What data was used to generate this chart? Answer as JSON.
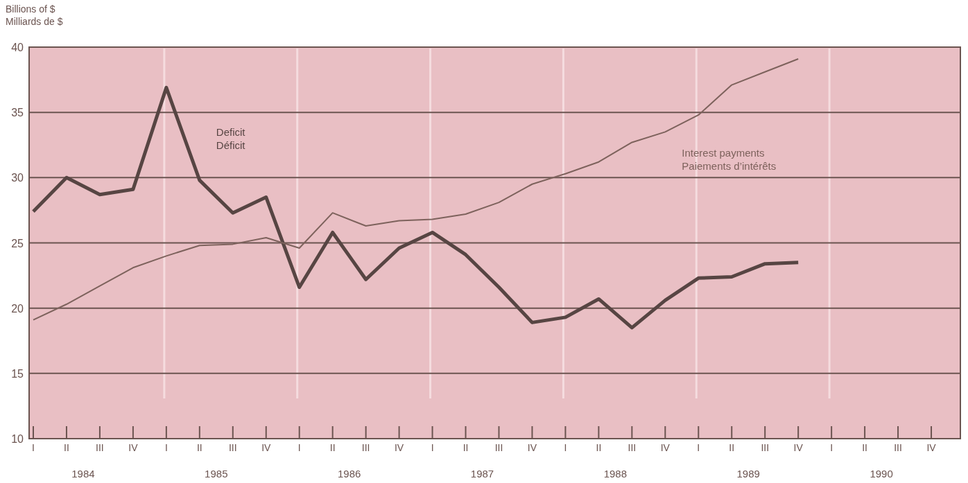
{
  "chart_data": {
    "type": "line",
    "ylabel": "Billions of $\nMilliards de $",
    "categories": [
      "I",
      "II",
      "III",
      "IV",
      "I",
      "II",
      "III",
      "IV",
      "I",
      "II",
      "III",
      "IV",
      "I",
      "II",
      "III",
      "IV",
      "I",
      "II",
      "III",
      "IV",
      "I",
      "II",
      "III",
      "IV",
      "I",
      "II",
      "III",
      "IV"
    ],
    "annotations": [
      "1984",
      "1985",
      "1986",
      "1987",
      "1988",
      "1989",
      "1990"
    ],
    "series": [
      {
        "name": "Deficit\nDéficit",
        "color": "#574543",
        "values": [
          27.4,
          30.0,
          28.7,
          29.1,
          36.9,
          29.8,
          27.3,
          28.5,
          21.6,
          25.8,
          22.2,
          24.6,
          25.8,
          24.1,
          21.6,
          18.9,
          19.3,
          20.7,
          18.5,
          20.6,
          22.3,
          22.4,
          23.4,
          23.5,
          null,
          null,
          null,
          null
        ]
      },
      {
        "name": "Interest payments\nPaiements d’intérêts",
        "color": "#7d625c",
        "values": [
          19.1,
          20.3,
          21.7,
          23.1,
          24.0,
          24.8,
          24.9,
          25.4,
          24.6,
          27.3,
          26.3,
          26.7,
          26.8,
          27.2,
          28.1,
          29.5,
          30.3,
          31.2,
          32.7,
          33.5,
          34.8,
          37.1,
          38.1,
          39.1,
          null,
          null,
          null,
          null
        ]
      }
    ],
    "ylim": [
      10,
      40
    ],
    "yticks": [
      10,
      15,
      20,
      25,
      30,
      35,
      40
    ],
    "grid": true,
    "marker": "none",
    "line_style": "solid"
  }
}
